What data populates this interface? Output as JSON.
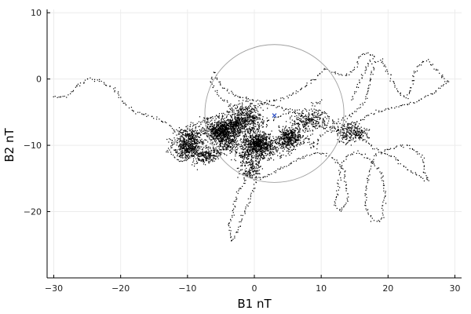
{
  "chart_data": {
    "type": "scatter",
    "title": "",
    "xlabel": "B1 nT",
    "ylabel": "B2 nT",
    "xlim": [
      -31,
      31
    ],
    "ylim": [
      -30,
      10.5
    ],
    "xticks": [
      -30,
      -20,
      -10,
      0,
      10,
      20,
      30
    ],
    "yticks": [
      -20,
      -10,
      0,
      10
    ],
    "grid": true,
    "legend": "none",
    "colors": {
      "points": "#000000",
      "circle": "#a0a0a0",
      "marker": "#3b5bc8",
      "grid": "#ececec",
      "axis": "#000000"
    },
    "circle": {
      "center": [
        3,
        -5.2
      ],
      "radius": 10.4
    },
    "marker": {
      "x": 3,
      "y": -5.5
    },
    "trajectory": [
      [
        -30,
        -2.8
      ],
      [
        -28,
        -2.6
      ],
      [
        -26.5,
        -1
      ],
      [
        -25,
        0
      ],
      [
        -23,
        -0.3
      ],
      [
        -21,
        -1.5
      ],
      [
        -19.5,
        -3.5
      ],
      [
        -18,
        -5
      ],
      [
        -16,
        -5.5
      ],
      [
        -14,
        -6.2
      ],
      [
        -12,
        -7.5
      ],
      [
        -10.5,
        -8.5
      ],
      [
        -9,
        -7.8
      ],
      [
        -8,
        -7
      ],
      [
        -7,
        -8.5
      ],
      [
        -6,
        -8
      ],
      [
        -5,
        -7.5
      ],
      [
        -4,
        -8.5
      ],
      [
        -3,
        -9.5
      ],
      [
        -2,
        -10
      ],
      [
        -1,
        -11
      ],
      [
        0,
        -10.5
      ],
      [
        1,
        -11.5
      ],
      [
        2,
        -10
      ],
      [
        3,
        -9
      ],
      [
        4,
        -10
      ],
      [
        5,
        -10.5
      ],
      [
        6,
        -9.5
      ],
      [
        7,
        -8.5
      ],
      [
        8,
        -9
      ],
      [
        9,
        -10
      ],
      [
        10,
        -8.5
      ],
      [
        11,
        -8
      ],
      [
        12,
        -7
      ],
      [
        13,
        -6
      ],
      [
        14,
        -5.5
      ],
      [
        15,
        -5
      ],
      [
        16,
        -4
      ],
      [
        17,
        -2
      ],
      [
        17.5,
        0.5
      ],
      [
        18,
        2.5
      ],
      [
        19,
        3
      ],
      [
        20,
        1
      ],
      [
        21,
        -1
      ],
      [
        22,
        -2.5
      ],
      [
        23,
        -2.8
      ],
      [
        23.5,
        -1
      ],
      [
        24,
        1
      ],
      [
        25,
        2.5
      ],
      [
        26,
        2.8
      ],
      [
        27,
        1.5
      ],
      [
        28.5,
        0
      ],
      [
        29,
        -0.5
      ],
      [
        27,
        -2
      ],
      [
        24,
        -3.5
      ],
      [
        20,
        -4.5
      ],
      [
        17,
        -5.5
      ],
      [
        15,
        -7
      ],
      [
        16,
        -9
      ],
      [
        18,
        -10.5
      ],
      [
        21,
        -12
      ],
      [
        23.5,
        -14
      ],
      [
        25,
        -15
      ],
      [
        26,
        -15.5
      ],
      [
        25,
        -11.5
      ],
      [
        23,
        -10
      ],
      [
        20,
        -10.5
      ],
      [
        18,
        -11.5
      ],
      [
        17,
        -15
      ],
      [
        16.5,
        -19
      ],
      [
        17.5,
        -21
      ],
      [
        19,
        -21.5
      ],
      [
        19.5,
        -17
      ],
      [
        19,
        -14
      ],
      [
        17,
        -12
      ],
      [
        15.5,
        -11
      ],
      [
        14,
        -11.5
      ],
      [
        13,
        -13
      ],
      [
        12.5,
        -17
      ],
      [
        12,
        -19
      ],
      [
        13,
        -20
      ],
      [
        14,
        -18
      ],
      [
        13.5,
        -14
      ],
      [
        12,
        -12
      ],
      [
        10,
        -11
      ],
      [
        8,
        -11.5
      ],
      [
        6,
        -12.5
      ],
      [
        5,
        -13
      ],
      [
        3,
        -14
      ],
      [
        1,
        -15
      ],
      [
        -1,
        -14.5
      ],
      [
        -2,
        -16.5
      ],
      [
        -3,
        -18.5
      ],
      [
        -3.2,
        -20.5
      ],
      [
        -4,
        -22
      ],
      [
        -3.5,
        -23
      ],
      [
        -3.5,
        -24.5
      ],
      [
        -2.5,
        -23
      ],
      [
        -2,
        -21
      ],
      [
        -1,
        -19
      ],
      [
        0,
        -16
      ],
      [
        0.5,
        -14
      ],
      [
        -1,
        -12
      ],
      [
        -3,
        -11
      ],
      [
        -5,
        -10.5
      ],
      [
        -7,
        -11
      ],
      [
        -9,
        -11.5
      ],
      [
        -11,
        -12.5
      ],
      [
        -13,
        -11
      ],
      [
        -12,
        -9.5
      ],
      [
        -10,
        -9
      ],
      [
        -8,
        -9.5
      ],
      [
        -6,
        -9
      ],
      [
        -4,
        -7.5
      ],
      [
        -2,
        -6.5
      ],
      [
        0,
        -6
      ],
      [
        -1,
        -5
      ],
      [
        -3,
        -4
      ],
      [
        -5,
        -3
      ],
      [
        -6.5,
        -0.5
      ],
      [
        -6,
        1
      ],
      [
        -5,
        -1
      ],
      [
        -3,
        -2.5
      ],
      [
        -1,
        -3
      ],
      [
        1,
        -3.5
      ],
      [
        3,
        -4
      ],
      [
        5,
        -4.5
      ],
      [
        7,
        -5.5
      ],
      [
        9,
        -7
      ],
      [
        11,
        -7.5
      ],
      [
        12,
        -6.5
      ],
      [
        10.5,
        -5
      ],
      [
        8,
        -4.5
      ],
      [
        6,
        -5
      ],
      [
        4,
        -5.5
      ],
      [
        2,
        -6.5
      ],
      [
        0,
        -7.5
      ],
      [
        -2,
        -8
      ],
      [
        -4,
        -9
      ],
      [
        -6,
        -10
      ],
      [
        -8,
        -10.5
      ],
      [
        -10,
        -10
      ],
      [
        -11.5,
        -8.5
      ],
      [
        -10,
        -7.5
      ],
      [
        -8,
        -6.5
      ],
      [
        -6,
        -5.5
      ],
      [
        -4,
        -5
      ],
      [
        -2,
        -4.5
      ],
      [
        0,
        -4
      ],
      [
        2,
        -3.5
      ],
      [
        4,
        -3
      ],
      [
        5.5,
        -2.5
      ],
      [
        7,
        -1.5
      ],
      [
        9,
        0
      ],
      [
        10.5,
        1.5
      ],
      [
        12,
        1
      ],
      [
        13.5,
        0.5
      ],
      [
        15,
        1.5
      ],
      [
        16,
        3.5
      ],
      [
        17,
        4
      ],
      [
        18,
        3.5
      ],
      [
        17,
        2
      ],
      [
        16,
        0
      ],
      [
        15,
        -2
      ],
      [
        14.5,
        -3.5
      ]
    ],
    "clusters": [
      {
        "cx": -4.5,
        "cy": -8,
        "sx": 2.2,
        "sy": 1.6,
        "n": 1100
      },
      {
        "cx": -10,
        "cy": -9.5,
        "sx": 2.8,
        "sy": 2.2,
        "n": 600
      },
      {
        "cx": 0.5,
        "cy": -10,
        "sx": 3.2,
        "sy": 2.3,
        "n": 900
      },
      {
        "cx": 5,
        "cy": -9,
        "sx": 3.4,
        "sy": 2.4,
        "n": 500
      },
      {
        "cx": -2,
        "cy": -6,
        "sx": 5,
        "sy": 2.3,
        "n": 500
      },
      {
        "cx": 15,
        "cy": -8.5,
        "sx": 1.6,
        "sy": 1.6,
        "n": 280
      },
      {
        "cx": -7,
        "cy": -11.5,
        "sx": 4,
        "sy": 2,
        "n": 300
      },
      {
        "cx": 9,
        "cy": -6.5,
        "sx": 3,
        "sy": 2,
        "n": 250
      },
      {
        "cx": 0,
        "cy": -13.5,
        "sx": 3,
        "sy": 1.4,
        "n": 200
      }
    ]
  }
}
